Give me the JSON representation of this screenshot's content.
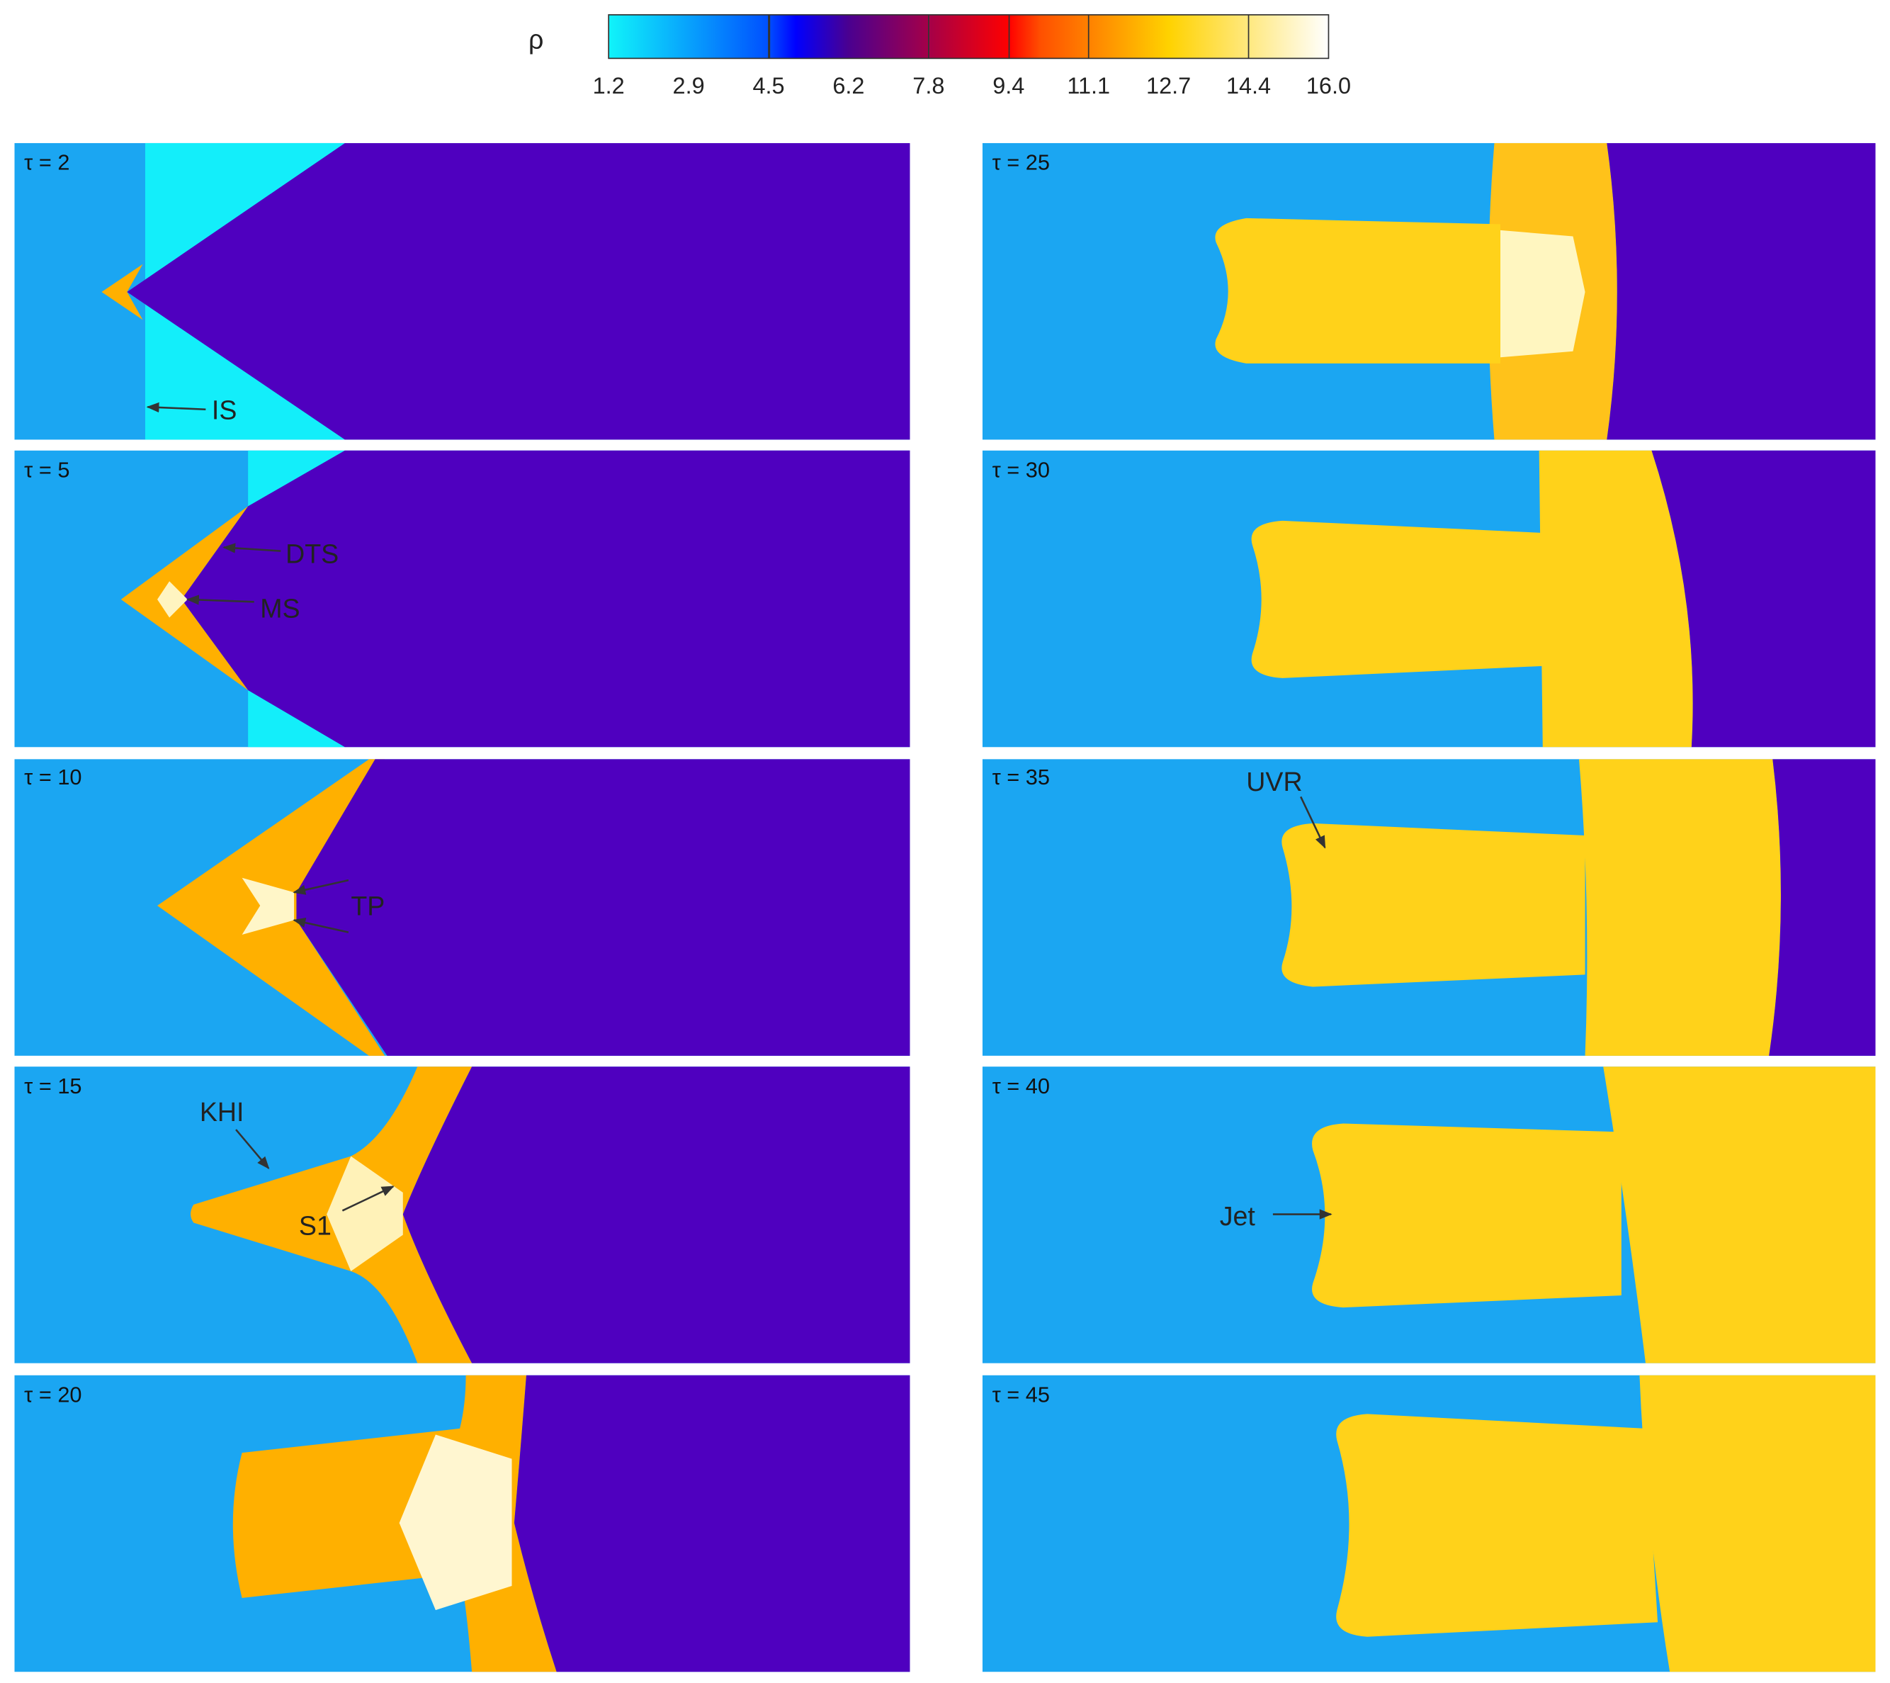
{
  "colorbar": {
    "label": "ρ",
    "ticks": [
      "1.2",
      "2.9",
      "4.5",
      "6.2",
      "7.8",
      "9.4",
      "11.1",
      "12.7",
      "14.4",
      "16.0"
    ]
  },
  "panels": [
    {
      "label": "τ = 2",
      "annotations": [
        "IS"
      ]
    },
    {
      "label": "τ = 5",
      "annotations": [
        "DTS",
        "MS"
      ]
    },
    {
      "label": "τ = 10",
      "annotations": [
        "TP"
      ]
    },
    {
      "label": "τ = 15",
      "annotations": [
        "KHI",
        "S1"
      ]
    },
    {
      "label": "τ = 20",
      "annotations": []
    },
    {
      "label": "τ = 25",
      "annotations": []
    },
    {
      "label": "τ = 30",
      "annotations": []
    },
    {
      "label": "τ = 35",
      "annotations": [
        "UVR"
      ]
    },
    {
      "label": "τ = 40",
      "annotations": [
        "Jet"
      ]
    },
    {
      "label": "τ = 45",
      "annotations": []
    }
  ]
}
